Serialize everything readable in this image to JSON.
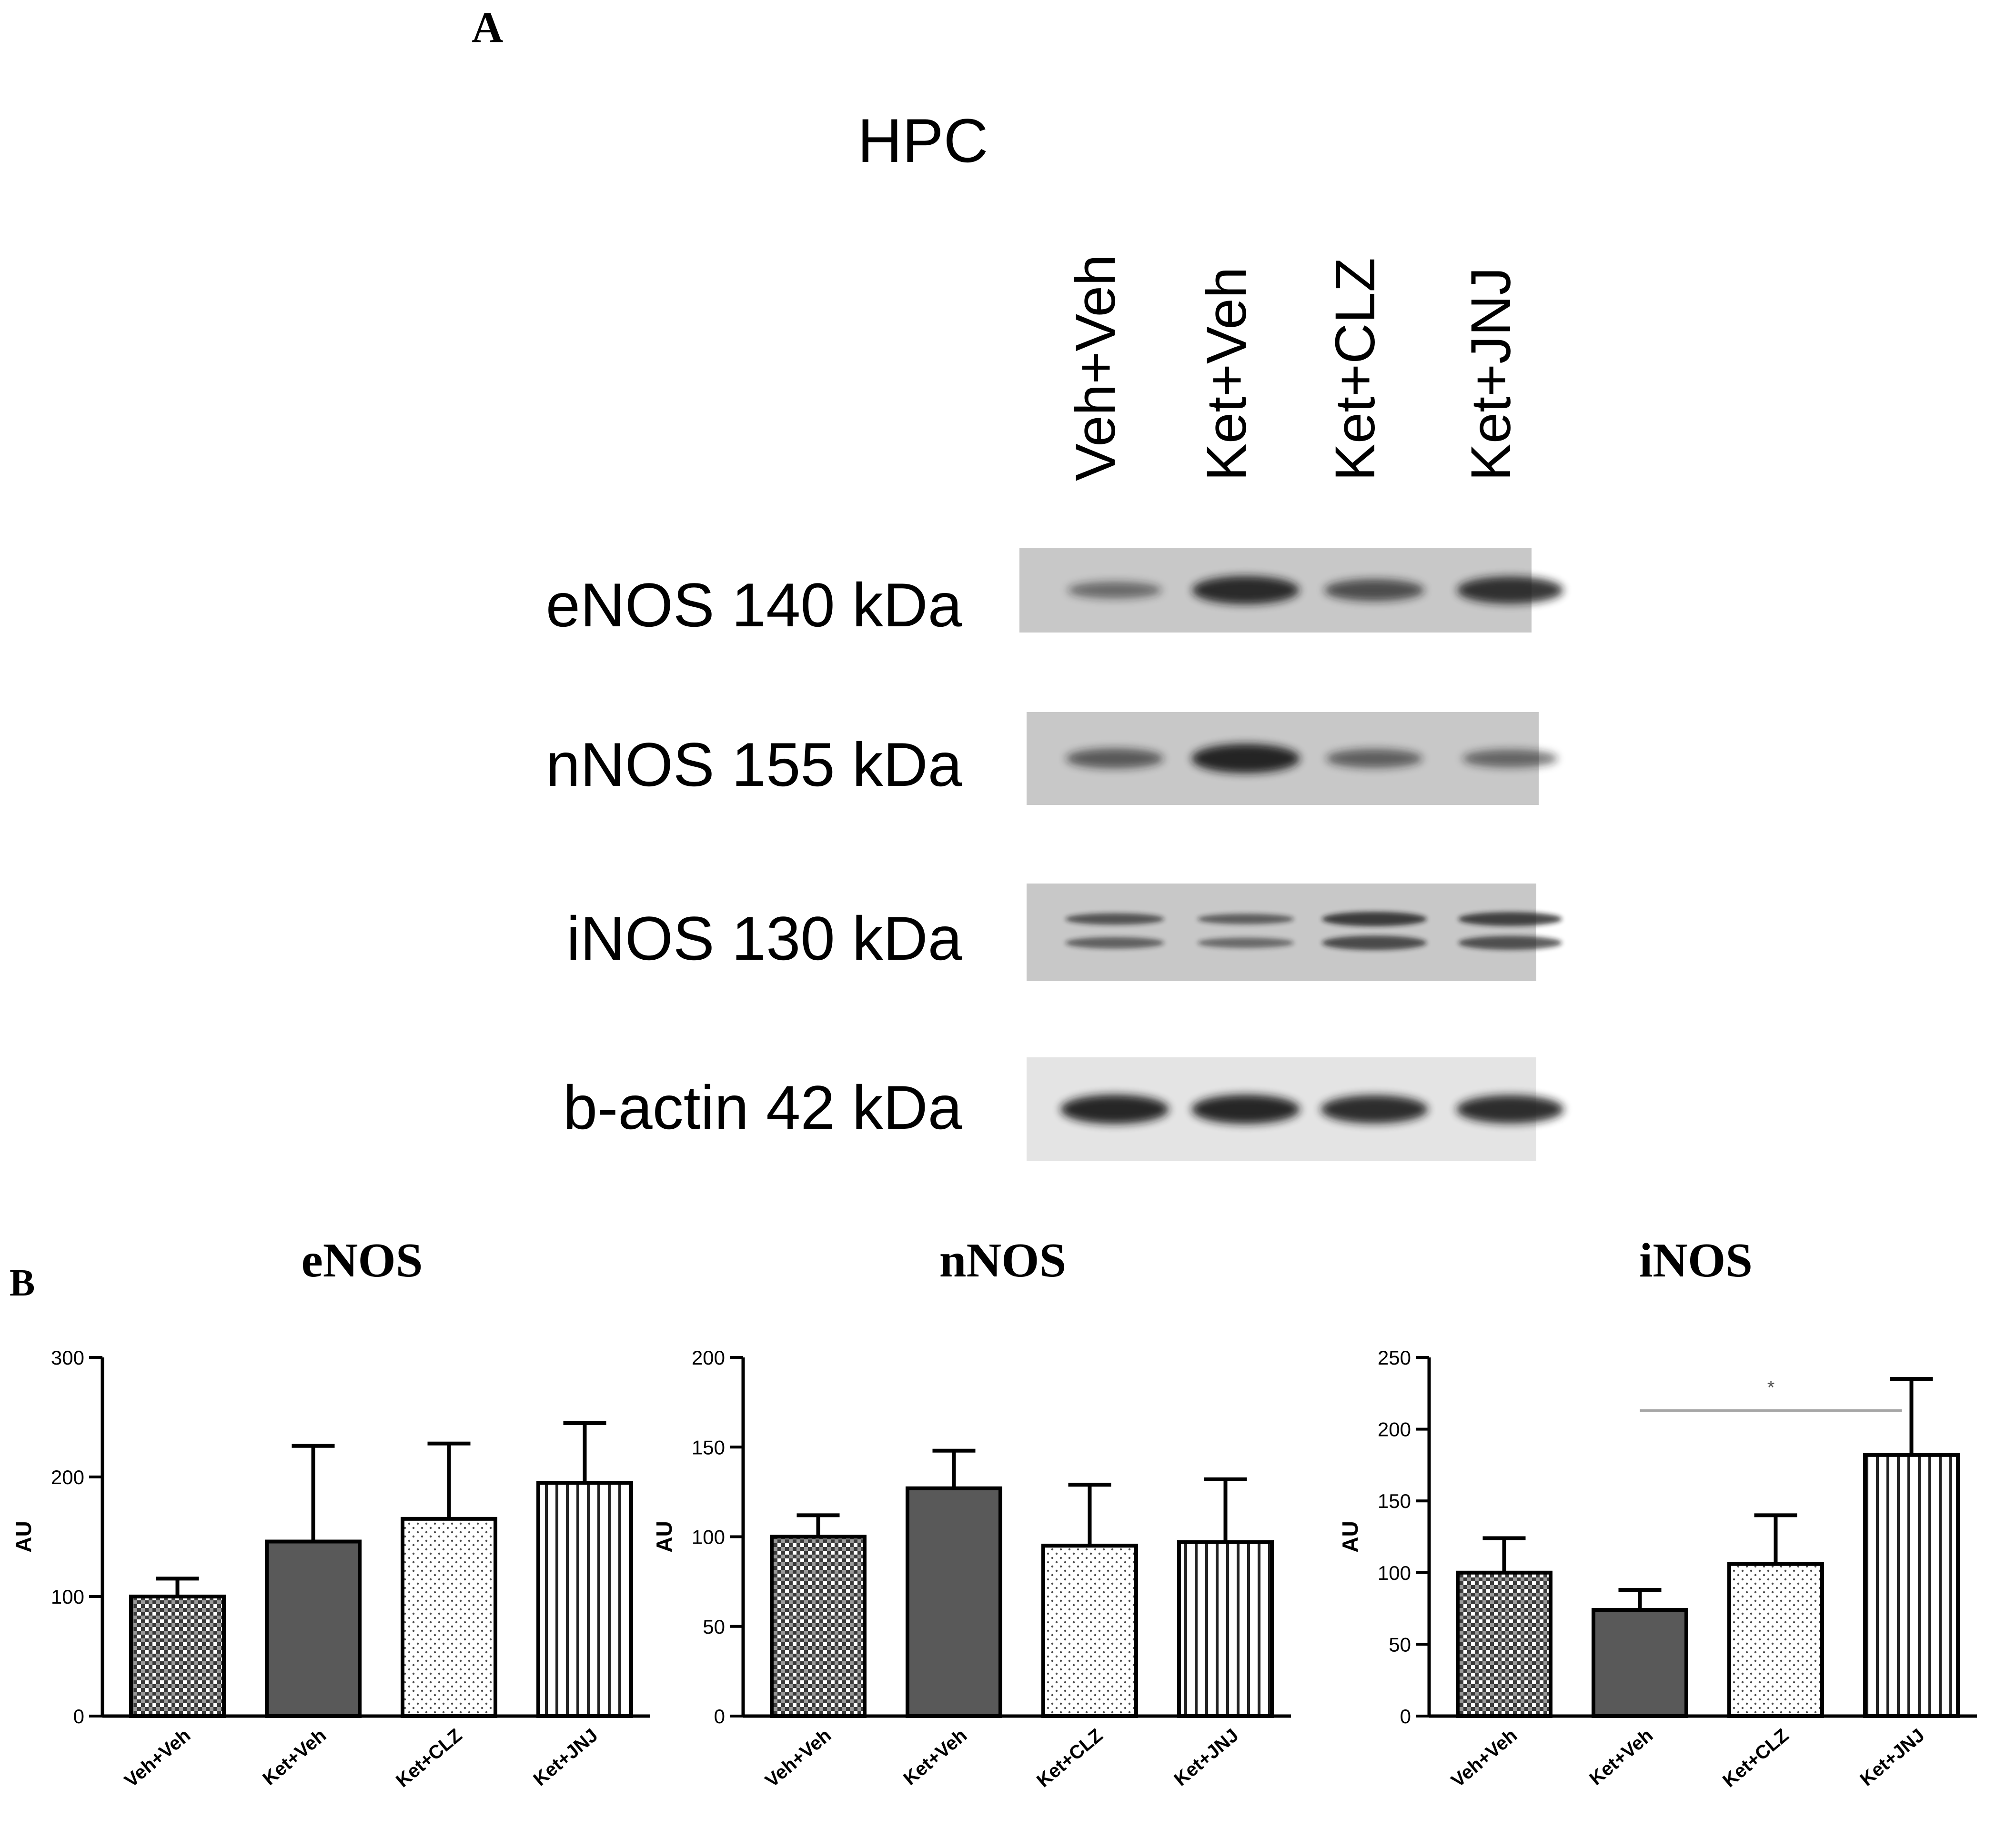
{
  "panel_a": {
    "label": "A",
    "region": "HPC",
    "lanes": [
      "Veh+Veh",
      "Ket+Veh",
      "Ket+CLZ",
      "Ket+JNJ"
    ],
    "blots": [
      {
        "label": "eNOS 140 kDa",
        "bands": [
          0.35,
          0.9,
          0.6,
          0.85
        ],
        "doublet": false
      },
      {
        "label": "nNOS 155 kDa",
        "bands": [
          0.5,
          0.95,
          0.45,
          0.4
        ],
        "doublet": false
      },
      {
        "label": "iNOS 130 kDa",
        "bands": [
          0.55,
          0.45,
          0.8,
          0.75
        ],
        "doublet": true
      },
      {
        "label": "b-actin 42 kDa",
        "bands": [
          0.95,
          0.95,
          0.9,
          0.9
        ],
        "doublet": false
      }
    ]
  },
  "panel_b": {
    "label": "B"
  },
  "chart_data": [
    {
      "type": "bar",
      "title": "eNOS",
      "ylabel": "AU",
      "categories": [
        "Veh+Veh",
        "Ket+Veh",
        "Ket+CLZ",
        "Ket+JNJ"
      ],
      "values": [
        100,
        146,
        165,
        195
      ],
      "errors": [
        15,
        80,
        63,
        50
      ],
      "ylim": [
        0,
        300
      ],
      "yticks": [
        0,
        100,
        200,
        300
      ],
      "patterns": [
        "checker",
        "solid",
        "dots",
        "vstripes"
      ],
      "significance": null
    },
    {
      "type": "bar",
      "title": "nNOS",
      "ylabel": "AU",
      "categories": [
        "Veh+Veh",
        "Ket+Veh",
        "Ket+CLZ",
        "Ket+JNJ"
      ],
      "values": [
        100,
        127,
        95,
        97
      ],
      "errors": [
        12,
        21,
        34,
        35
      ],
      "ylim": [
        0,
        200
      ],
      "yticks": [
        0,
        50,
        100,
        150,
        200
      ],
      "patterns": [
        "checker",
        "solid",
        "dots",
        "vstripes"
      ],
      "significance": null
    },
    {
      "type": "bar",
      "title": "iNOS",
      "ylabel": "AU",
      "categories": [
        "Veh+Veh",
        "Ket+Veh",
        "Ket+CLZ",
        "Ket+JNJ"
      ],
      "values": [
        100,
        74,
        106,
        182
      ],
      "errors": [
        24,
        14,
        34,
        53
      ],
      "ylim": [
        0,
        250
      ],
      "yticks": [
        0,
        50,
        100,
        150,
        200,
        250
      ],
      "patterns": [
        "checker",
        "solid",
        "dots",
        "vstripes"
      ],
      "significance": {
        "from": 1,
        "to": 3,
        "label": "*"
      }
    }
  ],
  "colors": {
    "bar_dark": "#595959",
    "axis": "#000000",
    "sig_line": "#a6a6a6",
    "blot_bg": "#c8c8c8",
    "band": "#141414"
  }
}
